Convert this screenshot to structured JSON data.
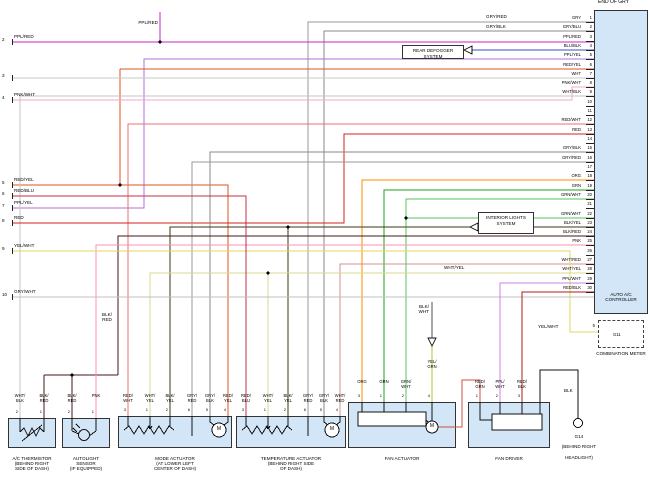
{
  "corner_text": "END OF GRY",
  "controller": {
    "title": "AUTO A/C CONTROLLER",
    "pins": [
      {
        "n": "1",
        "label": "GRY"
      },
      {
        "n": "2",
        "label": "GRY/BLU"
      },
      {
        "n": "3",
        "label": "PPL/RED"
      },
      {
        "n": "4",
        "label": "BLU/BLK"
      },
      {
        "n": "5",
        "label": "PPL/YEL"
      },
      {
        "n": "6",
        "label": "RED/YEL"
      },
      {
        "n": "7",
        "label": "WHT"
      },
      {
        "n": "8",
        "label": "PNK/WHT"
      },
      {
        "n": "9",
        "label": "WHT/BLK"
      },
      {
        "n": "10",
        "label": ""
      },
      {
        "n": "11",
        "label": ""
      },
      {
        "n": "12",
        "label": "RED/WHT"
      },
      {
        "n": "13",
        "label": "RED"
      },
      {
        "n": "14",
        "label": ""
      },
      {
        "n": "15",
        "label": "GRY/BLK"
      },
      {
        "n": "16",
        "label": "GRY/RED"
      },
      {
        "n": "17",
        "label": ""
      },
      {
        "n": "18",
        "label": "ORG"
      },
      {
        "n": "19",
        "label": "GRN"
      },
      {
        "n": "20",
        "label": "GRN/WHT"
      },
      {
        "n": "21",
        "label": ""
      },
      {
        "n": "22",
        "label": "GRN/WHT"
      },
      {
        "n": "23",
        "label": "BLK/YEL"
      },
      {
        "n": "24",
        "label": "BLK/RED"
      },
      {
        "n": "25",
        "label": "PNK"
      },
      {
        "n": "26",
        "label": ""
      },
      {
        "n": "27",
        "label": "WHT/RED"
      },
      {
        "n": "28",
        "label": "WHT/YEL"
      },
      {
        "n": "29",
        "label": "PPL/WHT"
      },
      {
        "n": "30",
        "label": "RED/BLK"
      }
    ]
  },
  "left_connector": [
    {
      "n": "2",
      "label": "PPL/RED"
    },
    {
      "n": "3",
      "label": ""
    },
    {
      "n": "4",
      "label": "PNK/WHT"
    },
    {
      "n": "5",
      "label": "RED/YEL"
    },
    {
      "n": "6",
      "label": "RED/BLU"
    },
    {
      "n": "7",
      "label": "PPL/YEL"
    },
    {
      "n": "8",
      "label": "RED"
    },
    {
      "n": "9",
      "label": "YEL/WHT"
    },
    {
      "n": "10",
      "label": "GRY/WHT"
    }
  ],
  "top_wire_labels": {
    "ppl_red": "PPL/RED",
    "gry_red": "GRY/RED",
    "gry_blk": "GRY/BLK"
  },
  "systems": {
    "rear_defogger": "REAR DEFOGGER SYSTEM",
    "interior_lights": "INTERIOR LIGHTS SYSTEM"
  },
  "floating_labels": {
    "blk_red": "BLK/RED",
    "blk_wht": "BLK/WHT",
    "wht_yel": "WHT/YEL",
    "yel_wht_meter": "YEL/WHT",
    "blk": "BLK"
  },
  "combination_meter": {
    "pin": "5",
    "g11": "G11",
    "caption": "COMBINATION METER"
  },
  "g14": {
    "name": "G14",
    "loc": [
      "(BEHIND RIGHT",
      "HEADLIGHT)"
    ]
  },
  "symbols": {
    "motor": "M"
  },
  "components": [
    {
      "id": "ac-thermistor",
      "name": [
        "A/C THERMISTOR",
        "(BEHIND RIGHT",
        "SIDE OF DASH)"
      ],
      "pins": [
        {
          "n": "2",
          "label": "WHT/BLK"
        },
        {
          "n": "1",
          "label": "BLK/RED"
        }
      ]
    },
    {
      "id": "autolight-sensor",
      "name": [
        "AUTOLIGHT",
        "SENSOR",
        "(IF EQUIPPED)"
      ],
      "pins": [
        {
          "n": "2",
          "label": "BLK/RED"
        },
        {
          "n": "1",
          "label": "PNK"
        }
      ]
    },
    {
      "id": "mode-actuator",
      "name": [
        "MODE ACTUATOR",
        "(AT LOWER LEFT",
        "CENTER OF DASH)"
      ],
      "pins": [
        {
          "n": "3",
          "label": "RED/WHT"
        },
        {
          "n": "1",
          "label": "WHT/YEL"
        },
        {
          "n": "2",
          "label": "BLK/YEL"
        },
        {
          "n": "6",
          "label": "GRY/RED"
        },
        {
          "n": "5",
          "label": "GRY/BLK"
        },
        {
          "n": "4",
          "label": "RED/YEL"
        }
      ]
    },
    {
      "id": "temperature-actuator",
      "name": [
        "TEMPERATURE ACTUATOR",
        "(BEHIND RIGHT SIDE",
        "OF DASH)"
      ],
      "pins": [
        {
          "n": "3",
          "label": "RED/BLU"
        },
        {
          "n": "1",
          "label": "WHT/YEL"
        },
        {
          "n": "2",
          "label": "BLK/YEL"
        },
        {
          "n": "6",
          "label": "GRY/RED"
        },
        {
          "n": "5",
          "label": "GRY/BLK"
        },
        {
          "n": "4",
          "label": "WHT/RED"
        }
      ]
    },
    {
      "id": "fan-actuator",
      "name": [
        "FAN ACTUATOR"
      ],
      "pins": [
        {
          "n": "3",
          "label": "ORG"
        },
        {
          "n": "1",
          "label": "GRN"
        },
        {
          "n": "2",
          "label": "GRN/WHT"
        },
        {
          "n": "4",
          "label": "YEL/GRN"
        }
      ]
    },
    {
      "id": "fan-driver",
      "name": [
        "FAN DRIVER"
      ],
      "pins": [
        {
          "n": "1",
          "label": "RED/GRN"
        },
        {
          "n": "2",
          "label": "PPL/WHT"
        },
        {
          "n": "3",
          "label": "RED/BLK"
        }
      ]
    }
  ],
  "wire_colors": {
    "PPL/RED": "#cc22cc",
    "PNK/WHT": "#f0a8cc",
    "RED/YEL": "#e05020",
    "RED/BLU": "#c03048",
    "PPL/YEL": "#b06fd8",
    "RED": "#d42020",
    "YEL/WHT": "#e0d860",
    "GRY/WHT": "#c0c0c0",
    "GRY": "#9a9a9a",
    "GRY/BLU": "#9aa4b8",
    "GRY/RED": "#9a9a9a",
    "GRY/BLK": "#8a8a8a",
    "BLU/BLK": "#3a4ec0",
    "WHT": "#c8c8c8",
    "WHT/BLK": "#c4c4c4",
    "RED/WHT": "#e87070",
    "ORG": "#ff8c00",
    "GRN": "#1fa01f",
    "GRN/WHT": "#58c058",
    "BLK/YEL": "#3a3a10",
    "BLK/RED": "#4a1515",
    "PNK": "#ff8fb4",
    "WHT/RED": "#d09090",
    "WHT/YEL": "#d8d890",
    "PPL/WHT": "#cf7fe8",
    "RED/BLK": "#b01818",
    "YEL/GRN": "#b0c820",
    "BLK/WHT": "#505050",
    "BLK": "#101010",
    "RED/GRN": "#cc5040"
  }
}
